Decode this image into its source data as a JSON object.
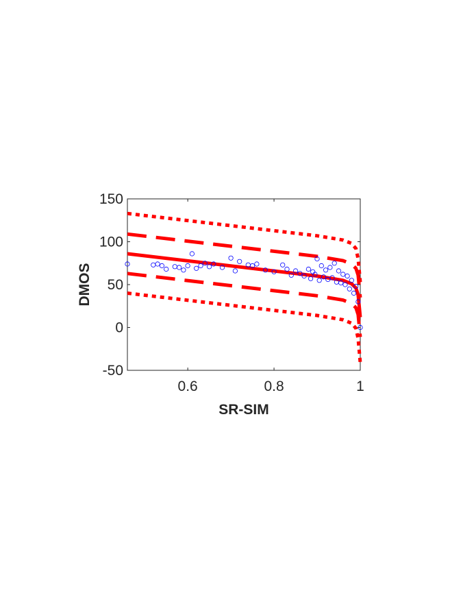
{
  "chart_data": {
    "type": "scatter",
    "title": "",
    "xlabel": "SR-SIM",
    "ylabel": "DMOS",
    "xlim": [
      0.46,
      1.0
    ],
    "ylim": [
      -50,
      150
    ],
    "xticks": [
      0.6,
      0.8,
      1
    ],
    "xtick_labels": [
      "0.6",
      "0.8",
      "1"
    ],
    "yticks": [
      -50,
      0,
      50,
      100,
      150
    ],
    "ytick_labels": [
      "-50",
      "0",
      "50",
      "100",
      "150"
    ],
    "grid": false,
    "legend": "none",
    "scatter_color": "#0000ff",
    "line_color": "#ff0000",
    "points": {
      "x": [
        0.46,
        0.52,
        0.53,
        0.54,
        0.55,
        0.57,
        0.58,
        0.59,
        0.6,
        0.61,
        0.62,
        0.63,
        0.64,
        0.65,
        0.66,
        0.68,
        0.7,
        0.71,
        0.72,
        0.74,
        0.75,
        0.76,
        0.78,
        0.8,
        0.82,
        0.83,
        0.84,
        0.85,
        0.86,
        0.87,
        0.88,
        0.885,
        0.89,
        0.895,
        0.9,
        0.905,
        0.91,
        0.915,
        0.92,
        0.925,
        0.93,
        0.935,
        0.94,
        0.945,
        0.95,
        0.955,
        0.96,
        0.965,
        0.97,
        0.975,
        0.98,
        0.985,
        0.99,
        0.995,
        1.0
      ],
      "y": [
        74,
        73,
        74,
        72,
        68,
        71,
        70,
        67,
        72,
        86,
        69,
        72,
        75,
        71,
        74,
        70,
        81,
        66,
        77,
        73,
        72,
        74,
        67,
        65,
        73,
        68,
        61,
        66,
        63,
        60,
        68,
        57,
        65,
        62,
        80,
        55,
        72,
        59,
        67,
        56,
        70,
        58,
        75,
        53,
        66,
        52,
        62,
        50,
        60,
        45,
        55,
        40,
        48,
        30,
        0
      ]
    },
    "series": [
      {
        "style": "solid",
        "x": [
          0.46,
          0.9,
          0.96,
          0.98,
          0.99,
          0.995,
          1.0
        ],
        "y": [
          86,
          60,
          55,
          51,
          46,
          38,
          12
        ]
      },
      {
        "style": "dashed",
        "x": [
          0.46,
          0.9,
          0.96,
          0.98,
          0.99,
          0.995,
          1.0
        ],
        "y": [
          109,
          83,
          78,
          74,
          69,
          61,
          35
        ]
      },
      {
        "style": "dashed",
        "x": [
          0.46,
          0.9,
          0.96,
          0.98,
          0.99,
          0.995,
          1.0
        ],
        "y": [
          63,
          37,
          32,
          28,
          23,
          15,
          -11
        ]
      },
      {
        "style": "dotted",
        "x": [
          0.46,
          0.9,
          0.96,
          0.98,
          0.99,
          0.995,
          1.0
        ],
        "y": [
          133,
          107,
          102,
          98,
          92,
          80,
          53
        ]
      },
      {
        "style": "dotted",
        "x": [
          0.46,
          0.9,
          0.96,
          0.98,
          0.99,
          0.995,
          1.0
        ],
        "y": [
          40,
          14,
          9,
          5,
          -1,
          -13,
          -41
        ]
      }
    ]
  }
}
